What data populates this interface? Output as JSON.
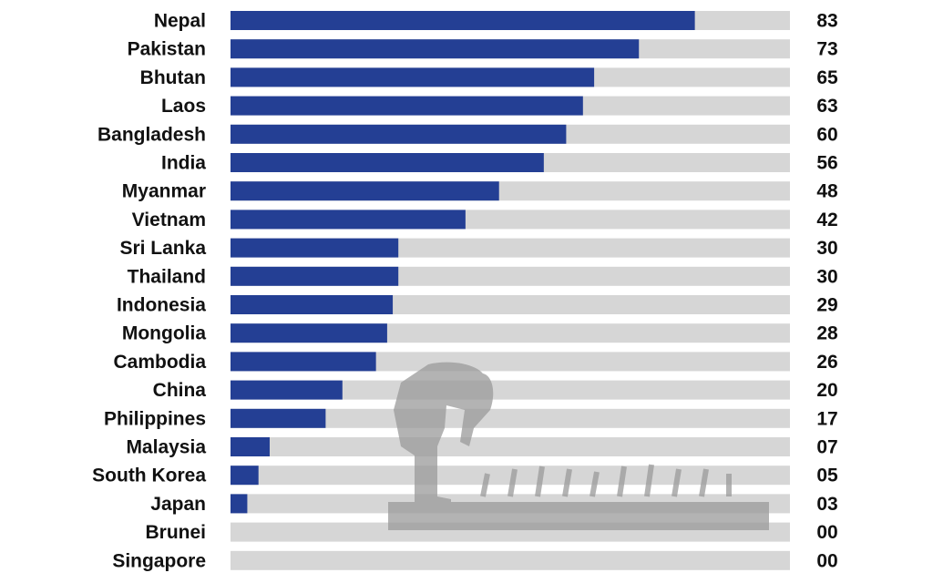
{
  "chart_data": {
    "type": "bar",
    "orientation": "horizontal",
    "title": "",
    "xlabel": "",
    "ylabel": "",
    "xlim": [
      0,
      100
    ],
    "grid": false,
    "categories": [
      "Nepal",
      "Pakistan",
      "Bhutan",
      "Laos",
      "Bangladesh",
      "India",
      "Myanmar",
      "Vietnam",
      "Sri Lanka",
      "Thailand",
      "Indonesia",
      "Mongolia",
      "Cambodia",
      "China",
      "Philippines",
      "Malaysia",
      "South Korea",
      "Japan",
      "Brunei",
      "Singapore"
    ],
    "values": [
      83,
      73,
      65,
      63,
      60,
      56,
      48,
      42,
      30,
      30,
      29,
      28,
      26,
      20,
      17,
      7,
      5,
      3,
      0,
      0
    ],
    "value_labels": [
      "83",
      "73",
      "65",
      "63",
      "60",
      "56",
      "48",
      "42",
      "30",
      "30",
      "29",
      "28",
      "26",
      "20",
      "17",
      "07",
      "05",
      "03",
      "00",
      "00"
    ],
    "colors": {
      "bar": "#243f94",
      "track": "#d6d6d6",
      "watermark": "#9a9a9a"
    }
  }
}
